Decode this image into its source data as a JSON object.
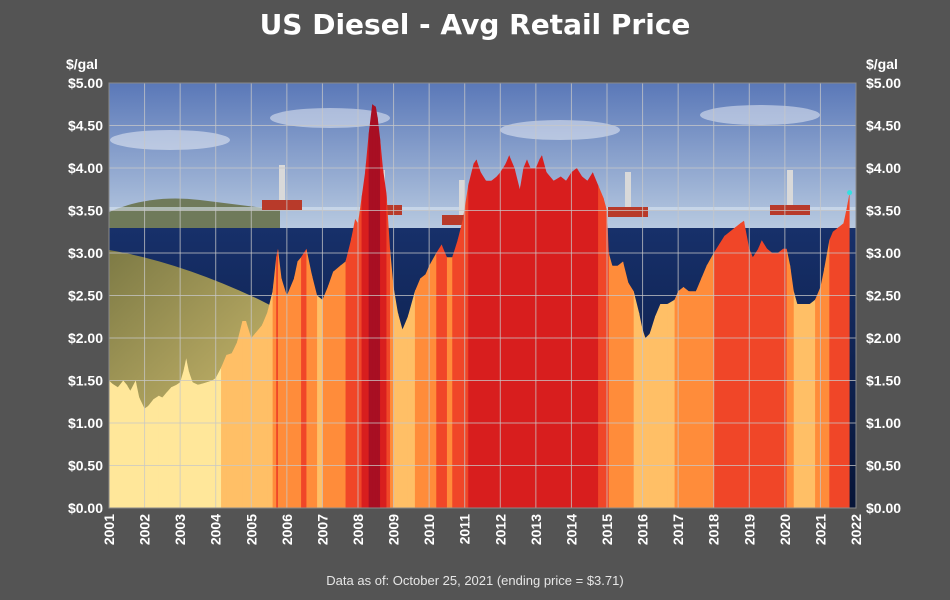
{
  "title": "US Diesel - Avg Retail Price",
  "unit_left": "$/gal",
  "unit_right": "$/gal",
  "footnote": "Data as of: October 25, 2021  (ending price = $3.71)",
  "colors": {
    "background": "#545454",
    "sky_top": "#5a78b8",
    "sky_bottom": "#b7c9e0",
    "ocean_top": "#17306a",
    "ocean_bottom": "#061437",
    "seabed": "#b8a35a",
    "band_lowest": "#ffe79a",
    "band_low": "#ffbf66",
    "band_mid": "#ff8c3a",
    "band_high": "#f04628",
    "band_higher": "#d81e1e",
    "band_highest": "#a80f23",
    "end_marker": "#33e0e0"
  },
  "chart_data": {
    "type": "area",
    "title": "US Diesel - Avg Retail Price",
    "xlabel": "",
    "ylabel": "$/gal",
    "ylim": [
      0,
      5
    ],
    "y_ticks": [
      "$0.00",
      "$0.50",
      "$1.00",
      "$1.50",
      "$2.00",
      "$2.50",
      "$3.00",
      "$3.50",
      "$4.00",
      "$4.50",
      "$5.00"
    ],
    "xlim": [
      2001,
      2022
    ],
    "x_ticks": [
      "2001",
      "2002",
      "2003",
      "2004",
      "2005",
      "2006",
      "2007",
      "2008",
      "2009",
      "2010",
      "2011",
      "2012",
      "2013",
      "2014",
      "2015",
      "2016",
      "2017",
      "2018",
      "2019",
      "2020",
      "2021",
      "2022"
    ],
    "grid": true,
    "ending_price": 3.71,
    "series": [
      {
        "x": [
          2001.0,
          2001.1,
          2001.25,
          2001.4,
          2001.5,
          2001.6,
          2001.75,
          2001.85,
          2002.0,
          2002.1,
          2002.25,
          2002.4,
          2002.5,
          2002.6,
          2002.75,
          2002.9,
          2003.0,
          2003.1,
          2003.17,
          2003.25,
          2003.35,
          2003.5,
          2003.6,
          2003.75,
          2003.9,
          2004.0,
          2004.15,
          2004.3,
          2004.45,
          2004.6,
          2004.75,
          2004.85,
          2005.0,
          2005.1,
          2005.3,
          2005.45,
          2005.6,
          2005.7,
          2005.75,
          2005.85,
          2006.0,
          2006.2,
          2006.3,
          2006.4,
          2006.55,
          2006.7,
          2006.85,
          2007.0,
          2007.15,
          2007.3,
          2007.5,
          2007.65,
          2007.8,
          2007.92,
          2008.0,
          2008.1,
          2008.2,
          2008.3,
          2008.4,
          2008.5,
          2008.55,
          2008.62,
          2008.7,
          2008.8,
          2008.9,
          2009.0,
          2009.12,
          2009.25,
          2009.4,
          2009.6,
          2009.75,
          2009.9,
          2010.0,
          2010.2,
          2010.35,
          2010.5,
          2010.65,
          2010.8,
          2010.95,
          2011.1,
          2011.25,
          2011.33,
          2011.45,
          2011.6,
          2011.75,
          2011.9,
          2012.0,
          2012.15,
          2012.25,
          2012.4,
          2012.55,
          2012.65,
          2012.75,
          2012.85,
          2013.0,
          2013.1,
          2013.17,
          2013.3,
          2013.5,
          2013.7,
          2013.85,
          2014.0,
          2014.15,
          2014.3,
          2014.45,
          2014.6,
          2014.75,
          2014.9,
          2015.0,
          2015.05,
          2015.15,
          2015.3,
          2015.45,
          2015.6,
          2015.75,
          2015.9,
          2016.0,
          2016.08,
          2016.2,
          2016.35,
          2016.5,
          2016.7,
          2016.9,
          2017.0,
          2017.15,
          2017.3,
          2017.5,
          2017.65,
          2017.8,
          2018.0,
          2018.15,
          2018.3,
          2018.45,
          2018.6,
          2018.75,
          2018.85,
          2019.0,
          2019.1,
          2019.25,
          2019.35,
          2019.5,
          2019.65,
          2019.8,
          2019.95,
          2020.05,
          2020.15,
          2020.25,
          2020.35,
          2020.5,
          2020.7,
          2020.85,
          2021.0,
          2021.1,
          2021.25,
          2021.35,
          2021.5,
          2021.65,
          2021.75,
          2021.82
        ],
        "values": [
          1.5,
          1.46,
          1.42,
          1.5,
          1.45,
          1.38,
          1.5,
          1.3,
          1.17,
          1.2,
          1.28,
          1.32,
          1.3,
          1.35,
          1.42,
          1.45,
          1.48,
          1.62,
          1.76,
          1.6,
          1.48,
          1.45,
          1.46,
          1.48,
          1.5,
          1.53,
          1.65,
          1.8,
          1.82,
          1.95,
          2.2,
          2.2,
          2.0,
          2.05,
          2.15,
          2.3,
          2.55,
          2.95,
          3.05,
          2.7,
          2.5,
          2.7,
          2.9,
          2.95,
          3.05,
          2.75,
          2.5,
          2.45,
          2.6,
          2.78,
          2.85,
          2.9,
          3.15,
          3.4,
          3.35,
          3.65,
          3.95,
          4.4,
          4.75,
          4.72,
          4.6,
          4.35,
          4.0,
          3.7,
          3.05,
          2.6,
          2.3,
          2.1,
          2.25,
          2.55,
          2.7,
          2.75,
          2.85,
          3.0,
          3.1,
          2.95,
          2.95,
          3.15,
          3.4,
          3.8,
          4.05,
          4.1,
          3.95,
          3.85,
          3.85,
          3.9,
          3.95,
          4.05,
          4.15,
          4.0,
          3.75,
          4.0,
          4.1,
          4.0,
          4.0,
          4.1,
          4.15,
          3.95,
          3.85,
          3.9,
          3.85,
          3.95,
          4.0,
          3.9,
          3.85,
          3.95,
          3.8,
          3.65,
          3.5,
          3.0,
          2.85,
          2.85,
          2.9,
          2.65,
          2.55,
          2.3,
          2.1,
          2.0,
          2.05,
          2.25,
          2.4,
          2.4,
          2.45,
          2.55,
          2.6,
          2.55,
          2.55,
          2.7,
          2.85,
          3.0,
          3.1,
          3.2,
          3.25,
          3.3,
          3.35,
          3.38,
          3.05,
          2.95,
          3.05,
          3.15,
          3.05,
          3.0,
          3.0,
          3.05,
          3.05,
          2.85,
          2.55,
          2.4,
          2.4,
          2.4,
          2.45,
          2.6,
          2.8,
          3.15,
          3.25,
          3.3,
          3.35,
          3.55,
          3.71
        ]
      }
    ]
  }
}
